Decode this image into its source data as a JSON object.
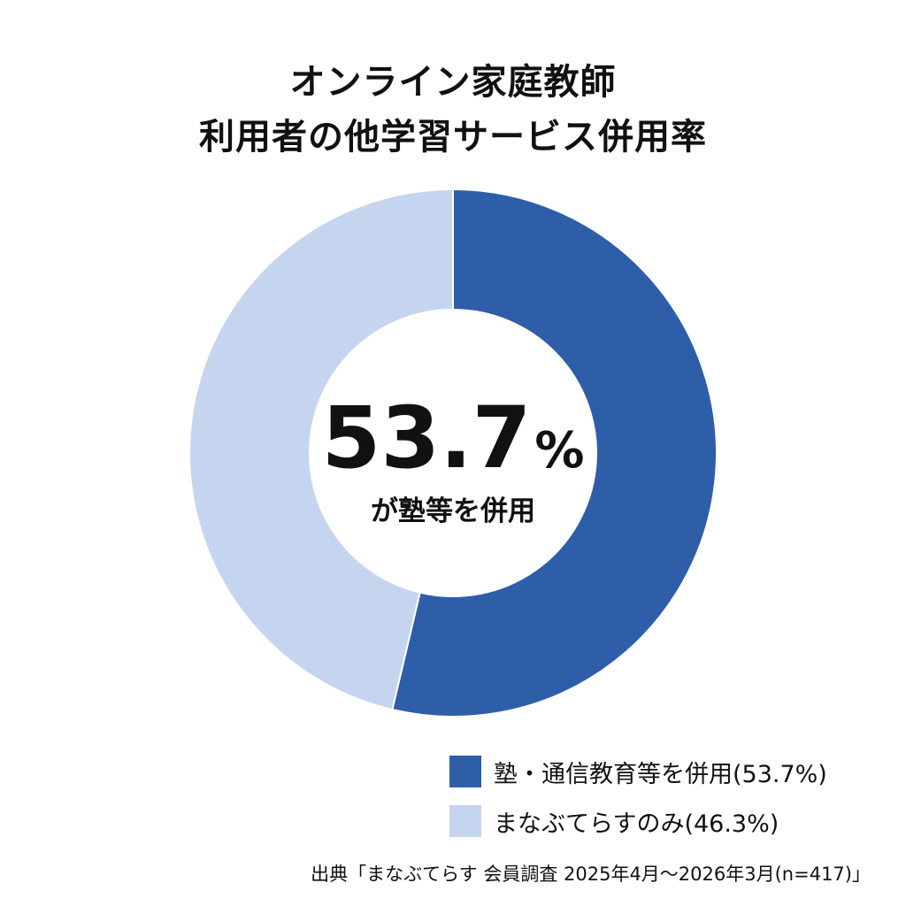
{
  "title_lines": [
    "オンライン家庭教師",
    "利用者の他学習サービス併用率"
  ],
  "chart_data": {
    "type": "pie",
    "style": "donut",
    "title": "オンライン家庭教師 利用者の他学習サービス併用率",
    "categories": [
      "塾・通信教育等を併用",
      "まなぶてらすのみ"
    ],
    "values": [
      53.7,
      46.3
    ],
    "unit": "%",
    "colors": [
      "#2e5ea8",
      "#c5d5f0"
    ],
    "legend_labels": [
      "塾・通信教育等を併用(53.7%)",
      "まなぶてらすのみ(46.3%)"
    ],
    "legend_position": "bottom-right",
    "center_value": "53.7%",
    "center_value_number": "53.7",
    "center_value_unit": "%",
    "center_caption": "が塾等を併用"
  },
  "source": "出典「まなぶてらす 会員調査 2025年4月〜2026年3月(n=417)」"
}
